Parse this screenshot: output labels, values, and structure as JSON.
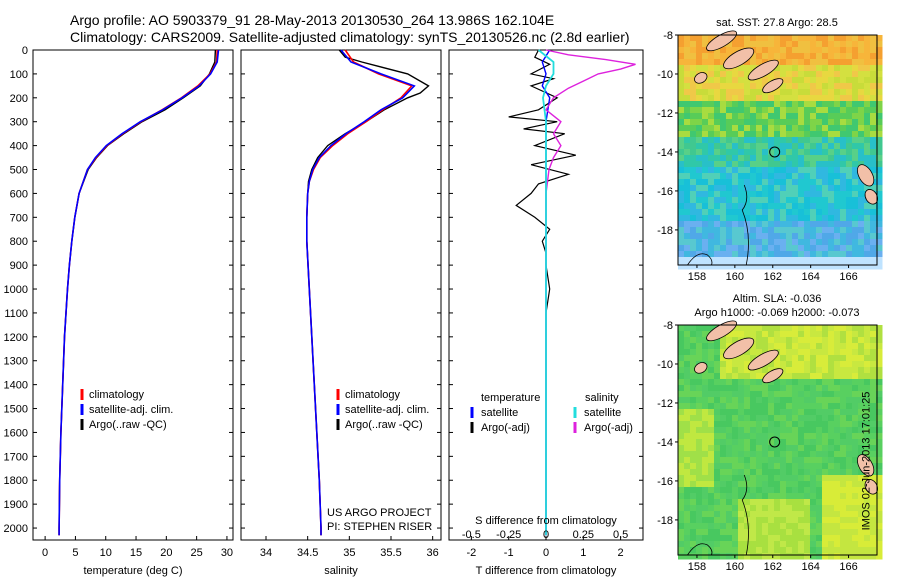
{
  "header": {
    "line1": "Argo profile: AO 5903379_91 28-May-2013 20130530_264 13.986S 162.104E",
    "line2": "Climatology: CARS2009. Satellite-adjusted climatology: synTS_20130526.nc (2.8d earlier)"
  },
  "colors": {
    "climatology": "#ff0000",
    "satellite": "#0000ff",
    "argo": "#000000",
    "sal_satellite": "#22dddd",
    "sal_argo": "#dd22dd"
  },
  "depth_axis": {
    "ticks": [
      0,
      100,
      200,
      300,
      400,
      500,
      600,
      700,
      800,
      900,
      1000,
      1100,
      1200,
      1300,
      1400,
      1500,
      1600,
      1700,
      1800,
      1900,
      2000
    ]
  },
  "chart_data": [
    {
      "type": "line",
      "name": "temperature",
      "xlabel": "temperature (deg C)",
      "ylabel": "",
      "xlim": [
        -2,
        31
      ],
      "ylim": [
        2050,
        0
      ],
      "xticks": [
        0,
        5,
        10,
        15,
        20,
        25,
        30
      ],
      "legend": [
        "climatology",
        "satellite-adj. clim.",
        "Argo(..raw -QC)"
      ],
      "series": [
        {
          "name": "climatology",
          "y": [
            0,
            50,
            100,
            150,
            200,
            250,
            300,
            350,
            400,
            450,
            500,
            600,
            700,
            800,
            900,
            1000,
            1200,
            1400,
            1600,
            1800,
            2000,
            2030
          ],
          "x": [
            28.4,
            28.3,
            27.2,
            25.2,
            22.5,
            19.3,
            15.8,
            12.8,
            10.2,
            8.4,
            7.0,
            5.6,
            4.9,
            4.4,
            4.0,
            3.7,
            3.2,
            2.9,
            2.6,
            2.4,
            2.3,
            2.3
          ]
        },
        {
          "name": "satellite-adj. clim.",
          "y": [
            0,
            50,
            100,
            150,
            200,
            250,
            300,
            350,
            400,
            450,
            500,
            600,
            700,
            800,
            900,
            1000,
            1200,
            1400,
            1600,
            1800,
            2000,
            2030
          ],
          "x": [
            28.6,
            28.4,
            27.3,
            25.4,
            22.6,
            19.4,
            15.7,
            12.7,
            10.1,
            8.3,
            7.0,
            5.6,
            4.9,
            4.4,
            4.0,
            3.7,
            3.2,
            2.9,
            2.6,
            2.4,
            2.3,
            2.3
          ]
        },
        {
          "name": "Argo(..raw -QC)",
          "y": [
            0,
            50,
            100,
            150,
            200,
            250,
            300,
            350,
            400,
            450,
            500,
            600,
            700,
            800,
            900,
            1000,
            1200,
            1400,
            1600,
            1800,
            2000,
            2030
          ],
          "x": [
            28.1,
            28.0,
            27.1,
            25.6,
            22.8,
            19.8,
            16.0,
            13.0,
            10.3,
            8.5,
            7.1,
            5.6,
            4.9,
            4.4,
            4.0,
            3.7,
            3.2,
            2.9,
            2.6,
            2.4,
            2.3,
            2.3
          ]
        }
      ]
    },
    {
      "type": "line",
      "name": "salinity",
      "xlabel": "salinity",
      "ylabel": "",
      "xlim": [
        33.7,
        36.1
      ],
      "ylim": [
        2050,
        0
      ],
      "xticks": [
        34,
        34.5,
        35,
        35.5,
        36
      ],
      "legend": [
        "climatology",
        "satellite-adj. clim.",
        "Argo(..raw -QC)"
      ],
      "annotation": [
        "US ARGO PROJECT",
        "PI: STEPHEN RISER"
      ],
      "series": [
        {
          "name": "climatology",
          "y": [
            0,
            50,
            100,
            150,
            200,
            250,
            300,
            350,
            400,
            450,
            500,
            550,
            600,
            700,
            800,
            1000,
            1200,
            1400,
            1600,
            1800,
            2000,
            2030
          ],
          "x": [
            34.95,
            35.05,
            35.35,
            35.75,
            35.62,
            35.4,
            35.2,
            34.98,
            34.8,
            34.65,
            34.57,
            34.52,
            34.5,
            34.49,
            34.49,
            34.52,
            34.55,
            34.58,
            34.61,
            34.64,
            34.66,
            34.66
          ]
        },
        {
          "name": "satellite-adj. clim.",
          "y": [
            0,
            50,
            100,
            150,
            200,
            250,
            300,
            350,
            400,
            450,
            500,
            550,
            600,
            700,
            800,
            1000,
            1200,
            1400,
            1600,
            1800,
            2000,
            2030
          ],
          "x": [
            34.9,
            35.02,
            35.38,
            35.78,
            35.64,
            35.38,
            35.18,
            34.96,
            34.78,
            34.64,
            34.56,
            34.52,
            34.5,
            34.49,
            34.49,
            34.52,
            34.55,
            34.58,
            34.61,
            34.64,
            34.66,
            34.66
          ]
        },
        {
          "name": "Argo(..raw -QC)",
          "y": [
            0,
            30,
            50,
            100,
            150,
            180,
            200,
            250,
            300,
            350,
            400,
            450,
            500,
            550,
            600,
            700,
            800,
            1000,
            1200,
            1400,
            1600,
            1800,
            2000,
            2030
          ],
          "x": [
            34.88,
            34.95,
            35.15,
            35.7,
            35.95,
            35.85,
            35.7,
            35.42,
            35.2,
            34.95,
            34.74,
            34.62,
            34.55,
            34.51,
            34.5,
            34.49,
            34.49,
            34.52,
            34.55,
            34.58,
            34.61,
            34.64,
            34.66,
            34.66
          ]
        }
      ]
    },
    {
      "type": "line",
      "name": "difference",
      "xlabel": "T difference from climatology",
      "xlabel_top": "S difference from climatology",
      "xlim": [
        -2.6,
        2.6
      ],
      "ylim": [
        2050,
        0
      ],
      "xticks": [
        -2,
        -1,
        0,
        1,
        2
      ],
      "xticks_top": [
        -0.5,
        -0.25,
        0,
        0.25,
        0.5
      ],
      "legend": {
        "temperature_title": "temperature",
        "salinity_title": "salinity",
        "items": [
          "satellite",
          "Argo(-adj)",
          "satellite",
          "Argo(-adj)"
        ]
      },
      "series": [
        {
          "name": "T satellite",
          "y": [
            0,
            50,
            100,
            150,
            200,
            300,
            400,
            500,
            700,
            1000,
            1500,
            2030
          ],
          "x": [
            0.1,
            -0.1,
            0.0,
            -0.1,
            0.1,
            0.0,
            0.0,
            0.0,
            0.0,
            0.0,
            0.0,
            0.0
          ]
        },
        {
          "name": "T Argo(-adj)",
          "y": [
            0,
            30,
            60,
            100,
            120,
            150,
            200,
            250,
            280,
            300,
            330,
            350,
            400,
            440,
            480,
            520,
            560,
            600,
            650,
            700,
            750,
            800,
            850,
            900,
            1000,
            1100,
            1500,
            2030
          ],
          "x": [
            -0.2,
            -0.3,
            0.1,
            -0.4,
            0.2,
            -0.4,
            0.3,
            -0.2,
            -1.0,
            0.3,
            -0.6,
            0.5,
            -0.3,
            0.8,
            -0.4,
            0.6,
            -0.2,
            -0.4,
            -0.8,
            -0.3,
            0.1,
            -0.1,
            0.0,
            0.0,
            0.1,
            0.0,
            0.0,
            0.0
          ]
        },
        {
          "name": "S satellite",
          "y": [
            0,
            50,
            100,
            150,
            200,
            300,
            400,
            500,
            700,
            1000,
            1500,
            2030
          ],
          "x": [
            -0.05,
            0.05,
            0.05,
            0.0,
            -0.02,
            0.0,
            0.0,
            0.0,
            0.0,
            0.0,
            0.0,
            0.0
          ]
        },
        {
          "name": "S Argo(-adj)",
          "y": [
            0,
            20,
            40,
            60,
            80,
            100,
            130,
            160,
            200,
            250,
            300,
            350,
            400,
            450,
            500,
            600,
            700,
            800,
            900,
            1000,
            1200,
            1500,
            2030
          ],
          "x": [
            0.0,
            0.15,
            0.4,
            0.6,
            0.5,
            0.35,
            0.25,
            0.15,
            0.05,
            0.0,
            0.1,
            0.05,
            0.1,
            0.05,
            0.02,
            0.0,
            0.0,
            0.0,
            0.0,
            0.0,
            0.0,
            0.0,
            0.0
          ]
        }
      ]
    },
    {
      "type": "heatmap",
      "name": "sst-map",
      "title": "sat. SST: 27.8 Argo: 28.5",
      "xlim": [
        157,
        167.5
      ],
      "ylim": [
        -19.8,
        -8
      ],
      "xticks": [
        158,
        160,
        162,
        164,
        166
      ],
      "yticks": [
        -8,
        -10,
        -12,
        -14,
        -16,
        -18
      ],
      "marker": {
        "lon": 162.1,
        "lat": -14.0
      }
    },
    {
      "type": "heatmap",
      "name": "sla-map",
      "title": "Altim. SLA: -0.036",
      "subtitle": "Argo h1000: -0.069 h2000: -0.073",
      "xlim": [
        157,
        167.5
      ],
      "ylim": [
        -19.8,
        -8
      ],
      "xticks": [
        158,
        160,
        162,
        164,
        166
      ],
      "yticks": [
        -8,
        -10,
        -12,
        -14,
        -16,
        -18
      ],
      "marker": {
        "lon": 162.1,
        "lat": -14.0
      }
    }
  ],
  "footer": {
    "rotated": "IMOS 02-Jun-2013 17:01:25"
  }
}
